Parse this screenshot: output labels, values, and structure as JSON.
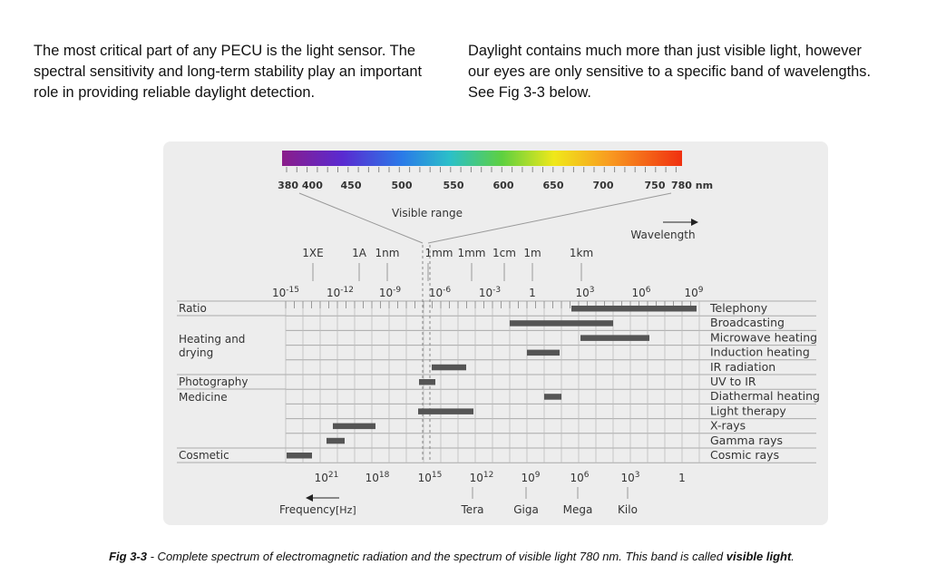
{
  "text": {
    "left": [
      "The most critical part of any PECU is the light sensor. The",
      "spectral sensitivity and long-term stability play an important",
      "role in providing reliable daylight detection."
    ],
    "right": [
      "Daylight contains much more than just visible light, however",
      "our eyes are only sensitive to a specific band of wavelengths.",
      "See Fig 3-3 below."
    ]
  },
  "figure": {
    "nm_labels": [
      "380 400",
      "450",
      "500",
      "550",
      "600",
      "650",
      "700",
      "750",
      "780 nm"
    ],
    "visible_range": "Visible range",
    "wavelength": "Wavelength",
    "length_units": [
      "1XE",
      "1A",
      "1nm",
      "1mm",
      "1mm",
      "1cm",
      "1m",
      "1km"
    ],
    "wavelength_powers": [
      {
        "base": "10",
        "exp": "-15"
      },
      {
        "base": "10",
        "exp": "-12"
      },
      {
        "base": "10",
        "exp": "-9"
      },
      {
        "base": "10",
        "exp": "-6"
      },
      {
        "base": "10",
        "exp": "-3"
      },
      {
        "base": "1",
        "exp": ""
      },
      {
        "base": "10",
        "exp": "3"
      },
      {
        "base": "10",
        "exp": "6"
      },
      {
        "base": "10",
        "exp": "9"
      }
    ],
    "groups": [
      {
        "lines": [
          "Ratio"
        ]
      },
      {
        "lines": [
          "Heating and",
          "drying"
        ]
      },
      {
        "lines": [
          "Photography"
        ]
      },
      {
        "lines": [
          "Medicine"
        ]
      },
      {
        "lines": [
          "Cosmetic"
        ]
      }
    ],
    "applications": [
      "Telephony",
      "Broadcasting",
      "Microwave heating",
      "Induction heating",
      "IR radiation",
      "UV to IR",
      "Diathermal heating",
      "Light therapy",
      "X-rays",
      "Gamma rays",
      "Cosmic rays"
    ],
    "frequency_powers": [
      {
        "base": "10",
        "exp": "21"
      },
      {
        "base": "10",
        "exp": "18"
      },
      {
        "base": "10",
        "exp": "15"
      },
      {
        "base": "10",
        "exp": "12"
      },
      {
        "base": "10",
        "exp": "9"
      },
      {
        "base": "10",
        "exp": "6"
      },
      {
        "base": "10",
        "exp": "3"
      },
      {
        "base": "1",
        "exp": ""
      }
    ],
    "prefixes": [
      "Tera",
      "Giga",
      "Mega",
      "Kilo"
    ],
    "frequency": "Frequency",
    "frequency_unit": "[Hz]"
  },
  "caption": {
    "label": "Fig 3-3",
    "text": " - Complete spectrum of electromagnetic radiation and the spectrum of visible light 780 nm. This band is called ",
    "emphasis": "visible light",
    "end": "."
  }
}
